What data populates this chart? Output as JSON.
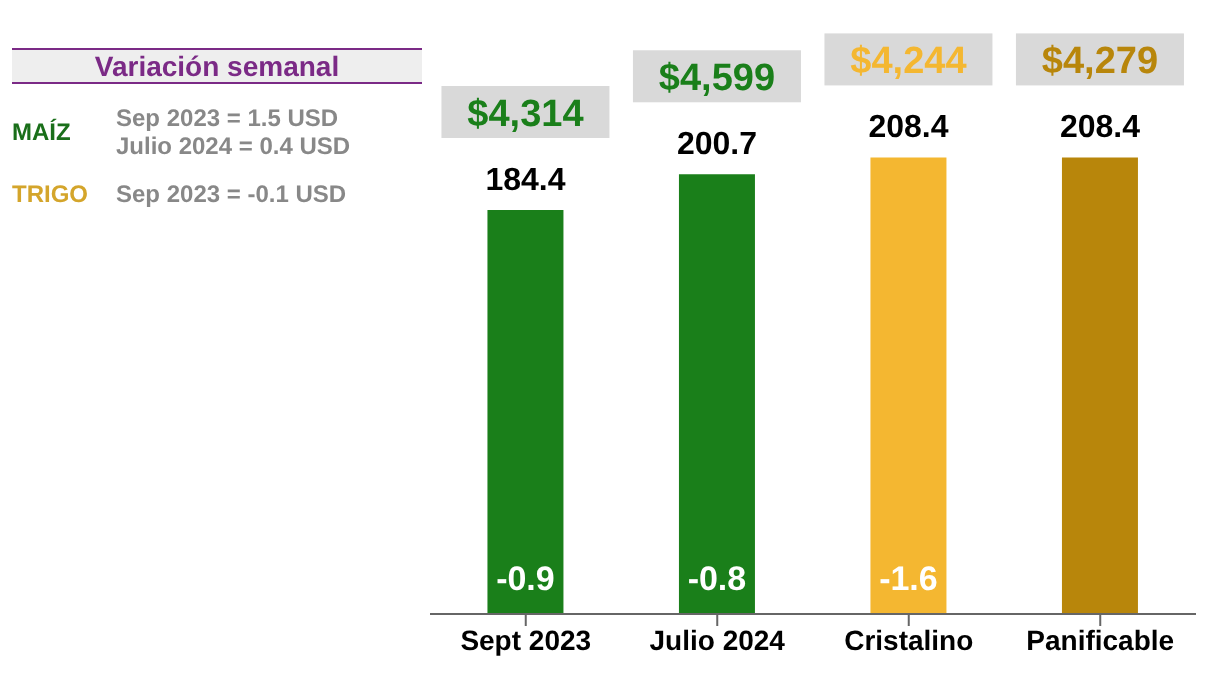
{
  "chart_data": {
    "type": "bar",
    "categories": [
      "Sept 2023",
      "Julio 2024",
      "Cristalino",
      "Panificable"
    ],
    "values": [
      184.4,
      200.7,
      208.4,
      208.4
    ],
    "colors": [
      "#1a7f1a",
      "#1a7f1a",
      "#f4b731",
      "#b8860b"
    ],
    "tick_labels": "x",
    "data_labels": true,
    "grid": false,
    "legend": false,
    "annotations": [
      "Variación semanal",
      "MAÍZ",
      "Sep 2023 = 1.5 USD",
      "Julio 2024 = 0.4 USD",
      "TRIGO",
      "Sep 2023 = -0.1 USD",
      "$4,314",
      "-0.9",
      "$4,599",
      "-0.8",
      "$4,244",
      "-1.6",
      "$4,279"
    ]
  }
}
